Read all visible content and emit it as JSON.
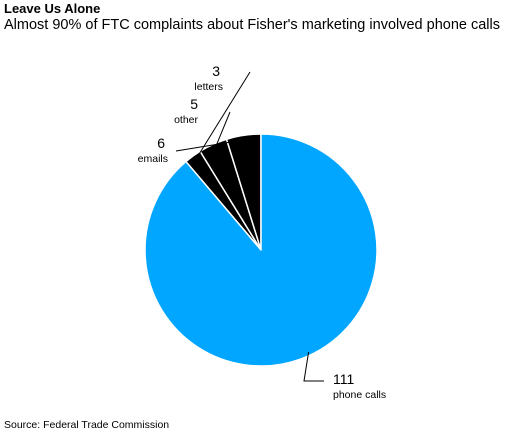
{
  "chart_data": {
    "type": "pie",
    "title": "Leave Us Alone",
    "subtitle": "Almost 90% of FTC complaints about Fisher's marketing involved phone calls",
    "source": "Source: Federal Trade Commission",
    "slices": [
      {
        "label": "letters",
        "value": 3,
        "color": "#000000"
      },
      {
        "label": "other",
        "value": 5,
        "color": "#000000"
      },
      {
        "label": "emails",
        "value": 6,
        "color": "#000000"
      },
      {
        "label": "phone calls",
        "value": 111,
        "color": "#00a6ff"
      }
    ]
  }
}
